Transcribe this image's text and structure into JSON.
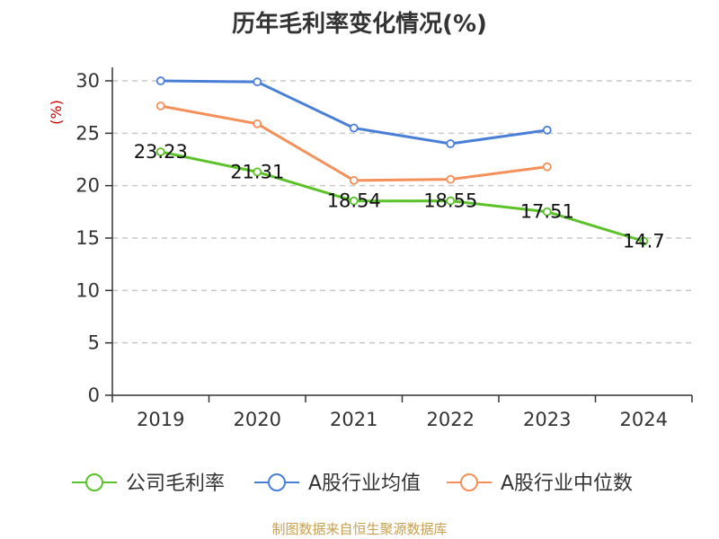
{
  "title": "历年毛利率变化情况(%)",
  "source": "制图数据来自恒生聚源数据库",
  "chart_data": {
    "type": "line",
    "title": "历年毛利率变化情况(%)",
    "ylabel": "(%)",
    "ylim": [
      0,
      30
    ],
    "yticks": [
      0,
      5,
      10,
      15,
      20,
      25,
      30
    ],
    "categories": [
      "2019",
      "2020",
      "2021",
      "2022",
      "2023",
      "2024"
    ],
    "grid": true,
    "legend_position": "bottom",
    "series": [
      {
        "name": "公司毛利率",
        "color": "#5cc22a",
        "labeled": true,
        "values": [
          23.23,
          21.31,
          18.54,
          18.55,
          17.51,
          14.7
        ]
      },
      {
        "name": "A股行业均值",
        "color": "#4a7fd8",
        "labeled": false,
        "values": [
          30.0,
          29.9,
          25.5,
          24.0,
          25.3,
          null
        ]
      },
      {
        "name": "A股行业中位数",
        "color": "#f5905a",
        "labeled": false,
        "values": [
          27.6,
          25.9,
          20.5,
          20.6,
          21.8,
          null
        ]
      }
    ]
  }
}
